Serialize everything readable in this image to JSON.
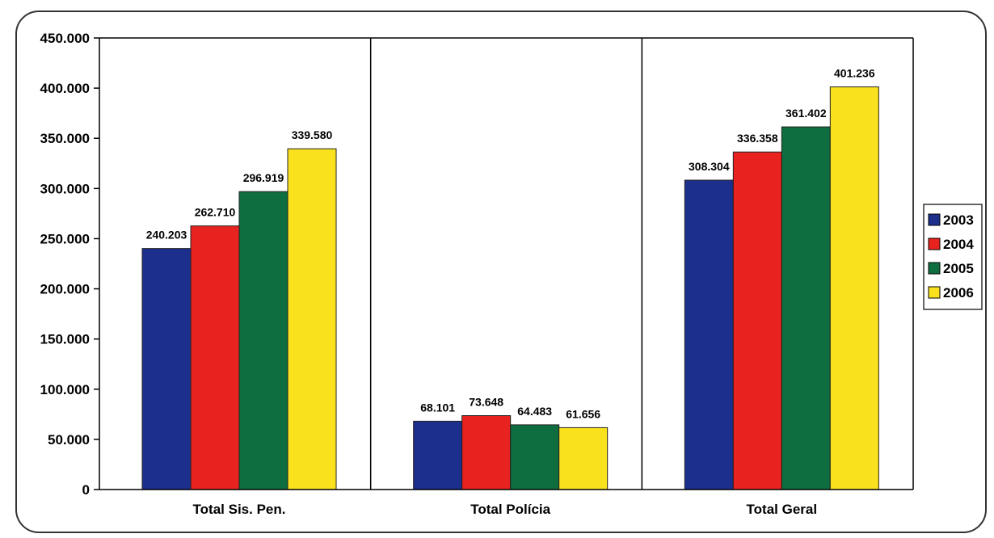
{
  "chart_data": {
    "type": "bar",
    "categories": [
      "Total Sis. Pen.",
      "Total Polícia",
      "Total Geral"
    ],
    "series": [
      {
        "name": "2003",
        "color": "#1c2f8c",
        "values": [
          240203,
          68101,
          308304
        ],
        "labels": [
          "240.203",
          "68.101",
          "308.304"
        ]
      },
      {
        "name": "2004",
        "color": "#e8231f",
        "values": [
          262710,
          73648,
          336358
        ],
        "labels": [
          "262.710",
          "73.648",
          "336.358"
        ]
      },
      {
        "name": "2005",
        "color": "#0f6e40",
        "values": [
          296919,
          64483,
          361402
        ],
        "labels": [
          "296.919",
          "64.483",
          "361.402"
        ]
      },
      {
        "name": "2006",
        "color": "#f9e11e",
        "values": [
          339580,
          61656,
          401236
        ],
        "labels": [
          "339.580",
          "61.656",
          "401.236"
        ]
      }
    ],
    "yticks": [
      {
        "value": 0,
        "label": "0"
      },
      {
        "value": 50000,
        "label": "50.000"
      },
      {
        "value": 100000,
        "label": "100.000"
      },
      {
        "value": 150000,
        "label": "150.000"
      },
      {
        "value": 200000,
        "label": "200.000"
      },
      {
        "value": 250000,
        "label": "250.000"
      },
      {
        "value": 300000,
        "label": "300.000"
      },
      {
        "value": 350000,
        "label": "350.000"
      },
      {
        "value": 400000,
        "label": "400.000"
      },
      {
        "value": 450000,
        "label": "450.000"
      }
    ],
    "ylim": [
      0,
      450000
    ],
    "title": "",
    "xlabel": "",
    "ylabel": "",
    "grid": false,
    "legend_position": "right"
  }
}
